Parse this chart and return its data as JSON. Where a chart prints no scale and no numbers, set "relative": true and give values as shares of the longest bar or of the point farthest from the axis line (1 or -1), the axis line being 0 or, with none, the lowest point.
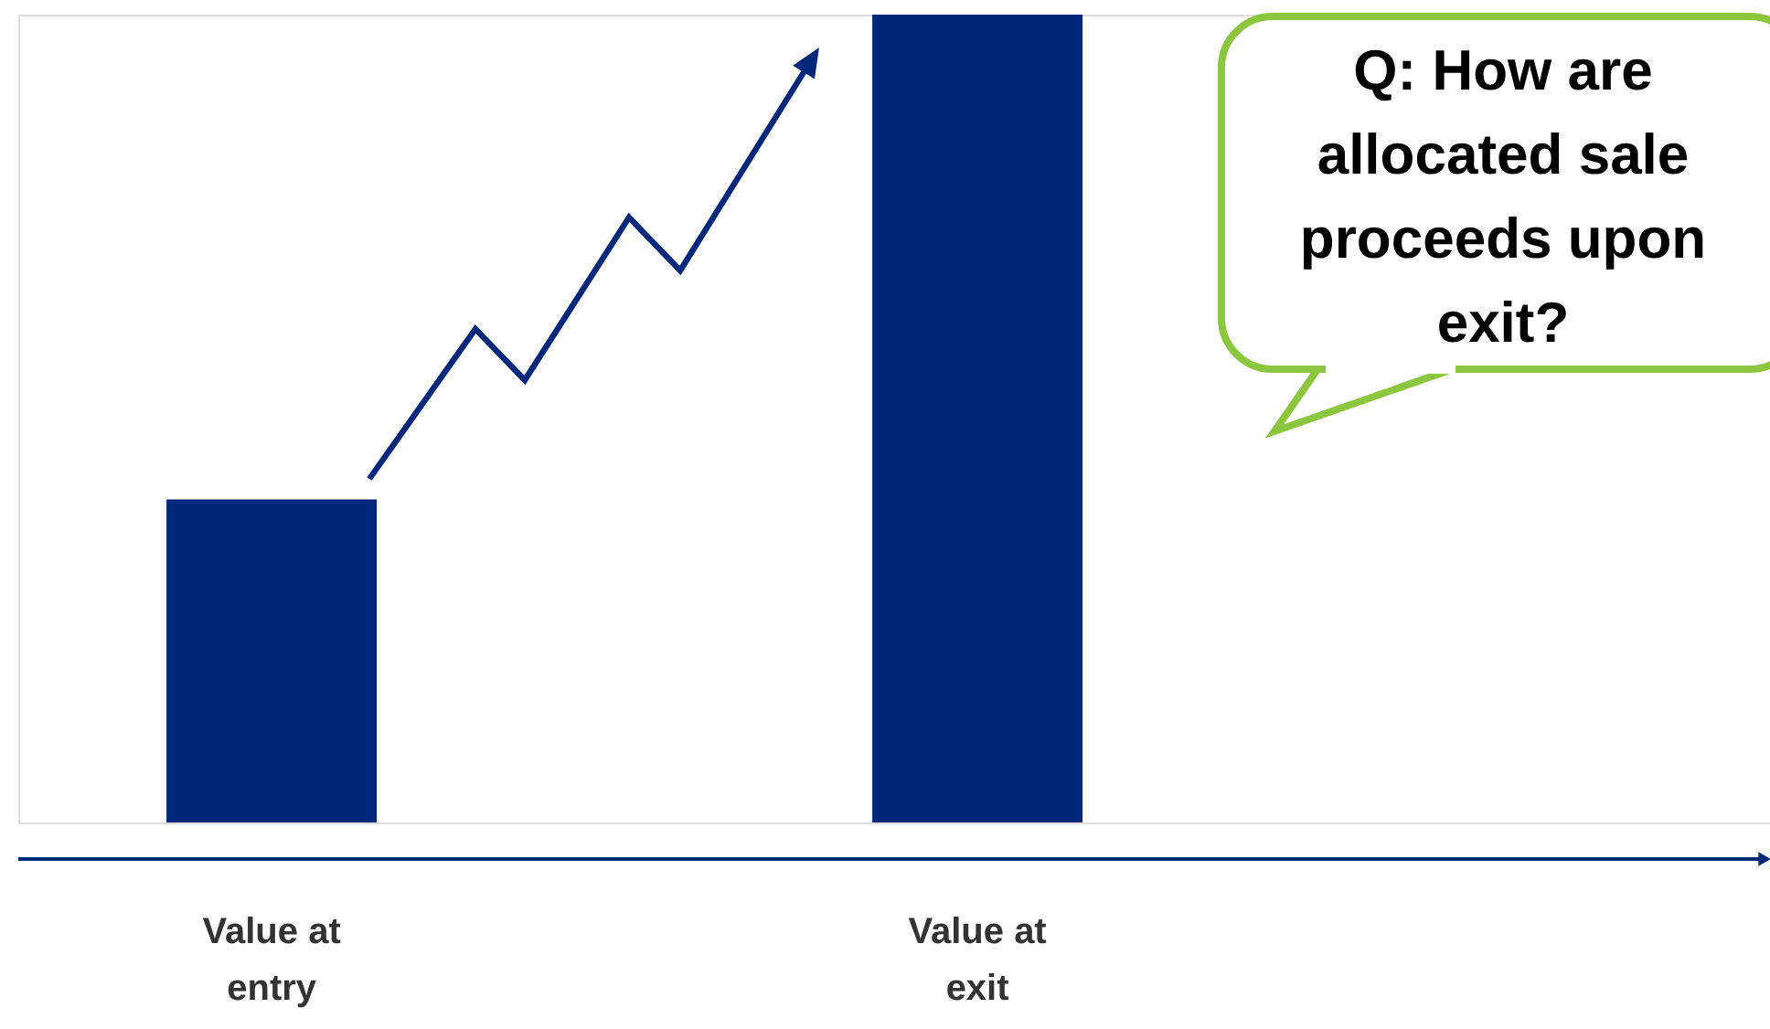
{
  "chart_data": {
    "type": "bar",
    "relative": true,
    "categories": [
      "Value at entry",
      "Value at exit"
    ],
    "values": [
      0.4,
      1
    ],
    "color": "#00287a",
    "annotations": [
      "Q: How are allocated sale proceeds upon exit?"
    ]
  }
}
